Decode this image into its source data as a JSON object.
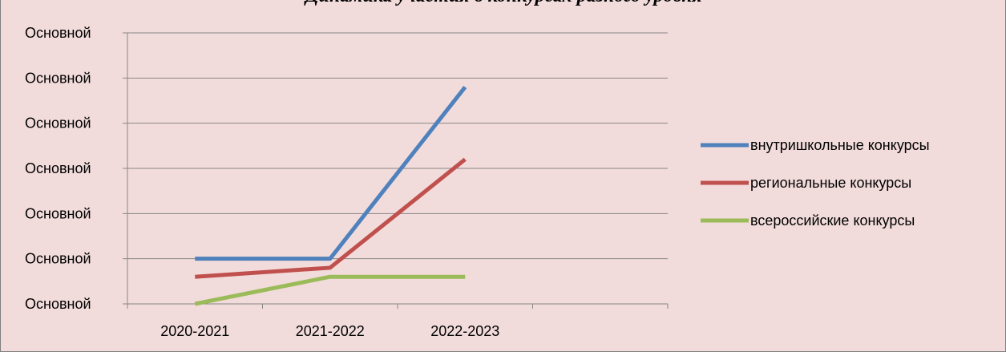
{
  "chart_data": {
    "type": "line",
    "title": "Динамика участия в конкурсах разного уровня",
    "categories": [
      "2020-2021",
      "2021-2022",
      "2022-2023"
    ],
    "y_tick_labels": [
      "Основной",
      "Основной",
      "Основной",
      "Основной",
      "Основной",
      "Основной",
      "Основной"
    ],
    "ylim": [
      0,
      6
    ],
    "series": [
      {
        "name": "внутришкольные конкурсы",
        "color": "#4f81bd",
        "values": [
          1,
          1,
          4.8
        ]
      },
      {
        "name": "региональные конкурсы",
        "color": "#c0504d",
        "values": [
          0.6,
          0.8,
          3.2
        ]
      },
      {
        "name": "всероссийские конкурсы",
        "color": "#9bbb59",
        "values": [
          0,
          0.6,
          0.6
        ]
      }
    ],
    "grid": true,
    "legend_position": "right"
  }
}
